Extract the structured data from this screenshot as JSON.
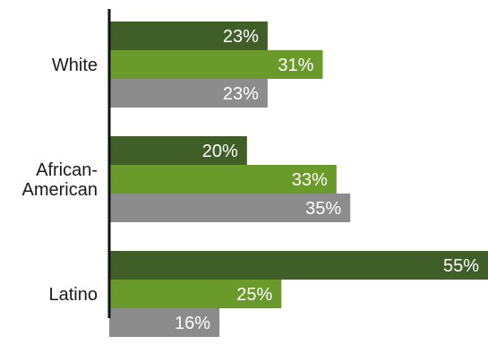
{
  "chart_data": {
    "type": "bar",
    "orientation": "horizontal",
    "categories": [
      [
        "White"
      ],
      [
        "African-",
        "American"
      ],
      [
        "Latino"
      ]
    ],
    "series": [
      {
        "color": "#3f5e28",
        "values": [
          23,
          20,
          55
        ],
        "labels": [
          "23%",
          "20%",
          "55%"
        ]
      },
      {
        "color": "#6a9a2a",
        "values": [
          31,
          33,
          25
        ],
        "labels": [
          "31%",
          "33%",
          "25%"
        ]
      },
      {
        "color": "#8c8c8c",
        "values": [
          23,
          35,
          16
        ],
        "labels": [
          "23%",
          "35%",
          "16%"
        ]
      }
    ],
    "xlim": [
      0,
      55
    ],
    "grid": false,
    "legend": "none",
    "title": "",
    "xlabel": "",
    "ylabel": ""
  }
}
